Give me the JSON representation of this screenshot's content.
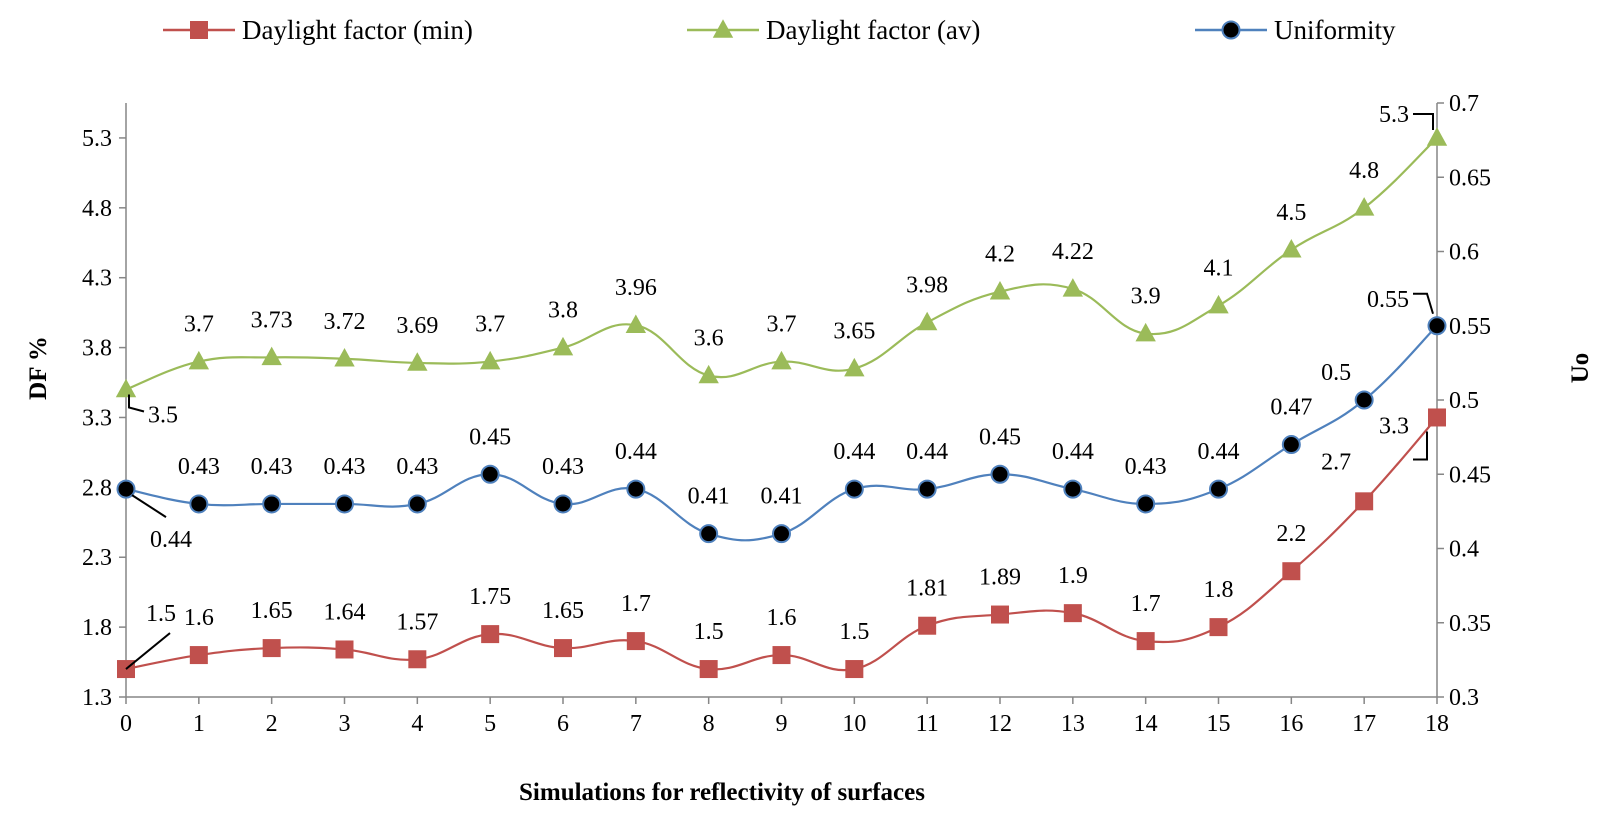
{
  "chart_data": {
    "type": "line",
    "title": "",
    "xlabel": "Simulations for reflectivity of surfaces",
    "ylabel": "DF %",
    "y2label": "Uo",
    "x": [
      0,
      1,
      2,
      3,
      4,
      5,
      6,
      7,
      8,
      9,
      10,
      11,
      12,
      13,
      14,
      15,
      16,
      17,
      18
    ],
    "ylim": [
      1.3,
      5.55
    ],
    "yticks": [
      1.3,
      1.8,
      2.3,
      2.8,
      3.3,
      3.8,
      4.3,
      4.8,
      5.3
    ],
    "y2lim": [
      0.3,
      0.7
    ],
    "y2ticks": [
      0.3,
      0.35,
      0.4,
      0.45,
      0.5,
      0.55,
      0.6,
      0.65,
      0.7
    ],
    "legend_position": "top",
    "grid": false,
    "series": [
      {
        "name": "Daylight factor (min)",
        "axis": "left",
        "color": "#c0504d",
        "marker": "square",
        "values": [
          1.5,
          1.6,
          1.65,
          1.64,
          1.57,
          1.75,
          1.65,
          1.7,
          1.5,
          1.6,
          1.5,
          1.81,
          1.89,
          1.9,
          1.7,
          1.8,
          2.2,
          2.7,
          3.3
        ],
        "labels": [
          "1.5",
          "1.6",
          "1.65",
          "1.64",
          "1.57",
          "1.75",
          "1.65",
          "1.7",
          "1.5",
          "1.6",
          "1.5",
          "1.81",
          "1.89",
          "1.9",
          "1.7",
          "1.8",
          "2.2",
          "2.7",
          "3.3"
        ]
      },
      {
        "name": "Daylight factor (av)",
        "axis": "left",
        "color": "#9bbb59",
        "marker": "triangle",
        "values": [
          3.5,
          3.7,
          3.73,
          3.72,
          3.69,
          3.7,
          3.8,
          3.96,
          3.6,
          3.7,
          3.65,
          3.98,
          4.2,
          4.22,
          3.9,
          4.1,
          4.5,
          4.8,
          5.3
        ],
        "labels": [
          "3.5",
          "3.7",
          "3.73",
          "3.72",
          "3.69",
          "3.7",
          "3.8",
          "3.96",
          "3.6",
          "3.7",
          "3.65",
          "3.98",
          "4.2",
          "4.22",
          "3.9",
          "4.1",
          "4.5",
          "4.8",
          "5.3"
        ]
      },
      {
        "name": "Uniformity",
        "axis": "right",
        "color": "#4f81bd",
        "marker": "circle",
        "values": [
          0.44,
          0.43,
          0.43,
          0.43,
          0.43,
          0.45,
          0.43,
          0.44,
          0.41,
          0.41,
          0.44,
          0.44,
          0.45,
          0.44,
          0.43,
          0.44,
          0.47,
          0.5,
          0.55
        ],
        "labels": [
          "0.44",
          "0.43",
          "0.43",
          "0.43",
          "0.43",
          "0.45",
          "0.43",
          "0.44",
          "0.41",
          "0.41",
          "0.44",
          "0.44",
          "0.45",
          "0.44",
          "0.43",
          "0.44",
          "0.47",
          "0.5",
          "0.55"
        ]
      }
    ]
  }
}
